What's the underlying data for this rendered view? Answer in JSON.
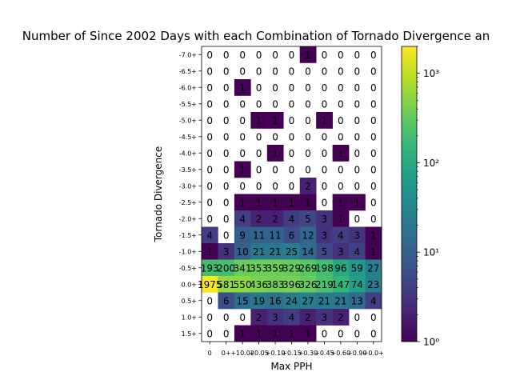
{
  "chart_data": {
    "type": "heatmap",
    "title": "Number of Since 2002 Days with each Combination of Tornado Divergence an",
    "xlabel": "Max PPH",
    "ylabel": "Tornado Divergence",
    "x_categories": [
      "0",
      "0+",
      "+10.02",
      "+0.05",
      "+0.10",
      "+0.15",
      "+0.30",
      "+0.45",
      "+0.60",
      "+0.90",
      "+0.0+"
    ],
    "y_categories": [
      "-7.0+",
      "-6.5+",
      "-6.0+",
      "-5.5+",
      "-5.0+",
      "-4.5+",
      "-4.0+",
      "-3.5+",
      "-3.0+",
      "-2.5+",
      "-2.0+",
      "-1.5+",
      "-1.0+",
      "-0.5+",
      "0.0+",
      "0.5+",
      "1.0+",
      "1.5+"
    ],
    "values": [
      [
        0,
        0,
        0,
        0,
        0,
        0,
        1,
        0,
        0,
        0,
        0
      ],
      [
        0,
        0,
        0,
        0,
        0,
        0,
        0,
        0,
        0,
        0,
        0
      ],
      [
        0,
        0,
        1,
        0,
        0,
        0,
        0,
        0,
        0,
        0,
        0
      ],
      [
        0,
        0,
        0,
        0,
        0,
        0,
        0,
        0,
        0,
        0,
        0
      ],
      [
        0,
        0,
        0,
        1,
        1,
        0,
        0,
        1,
        0,
        0,
        0
      ],
      [
        0,
        0,
        0,
        0,
        0,
        0,
        0,
        0,
        0,
        0,
        0
      ],
      [
        0,
        0,
        0,
        0,
        1,
        0,
        0,
        0,
        1,
        0,
        0
      ],
      [
        0,
        0,
        1,
        0,
        0,
        0,
        0,
        0,
        0,
        0,
        0
      ],
      [
        0,
        0,
        0,
        0,
        0,
        0,
        2,
        0,
        0,
        0,
        0
      ],
      [
        0,
        0,
        1,
        1,
        1,
        1,
        1,
        0,
        1,
        1,
        0
      ],
      [
        0,
        0,
        4,
        2,
        2,
        4,
        5,
        3,
        1,
        0,
        0
      ],
      [
        4,
        0,
        9,
        11,
        11,
        6,
        12,
        3,
        4,
        3,
        1
      ],
      [
        1,
        3,
        10,
        21,
        21,
        25,
        14,
        5,
        3,
        4,
        1
      ],
      [
        193,
        200,
        341,
        353,
        359,
        329,
        269,
        198,
        96,
        59,
        27
      ],
      [
        1975,
        581,
        550,
        436,
        383,
        396,
        326,
        219,
        147,
        74,
        23
      ],
      [
        0,
        6,
        15,
        19,
        16,
        24,
        27,
        21,
        21,
        13,
        4
      ],
      [
        0,
        0,
        0,
        2,
        3,
        4,
        2,
        3,
        2,
        0,
        0
      ],
      [
        0,
        0,
        1,
        1,
        1,
        1,
        1,
        0,
        0,
        0,
        0
      ]
    ],
    "colorbar": {
      "scale": "log",
      "range": [
        1,
        2000
      ],
      "tick_labels": [
        "10⁰",
        "10¹",
        "10²",
        "10³"
      ],
      "tick_values": [
        1,
        10,
        100,
        1000
      ],
      "colormap": "viridis"
    },
    "zero_cells": "blank (white)",
    "grid": false,
    "cell_annotations": true
  }
}
